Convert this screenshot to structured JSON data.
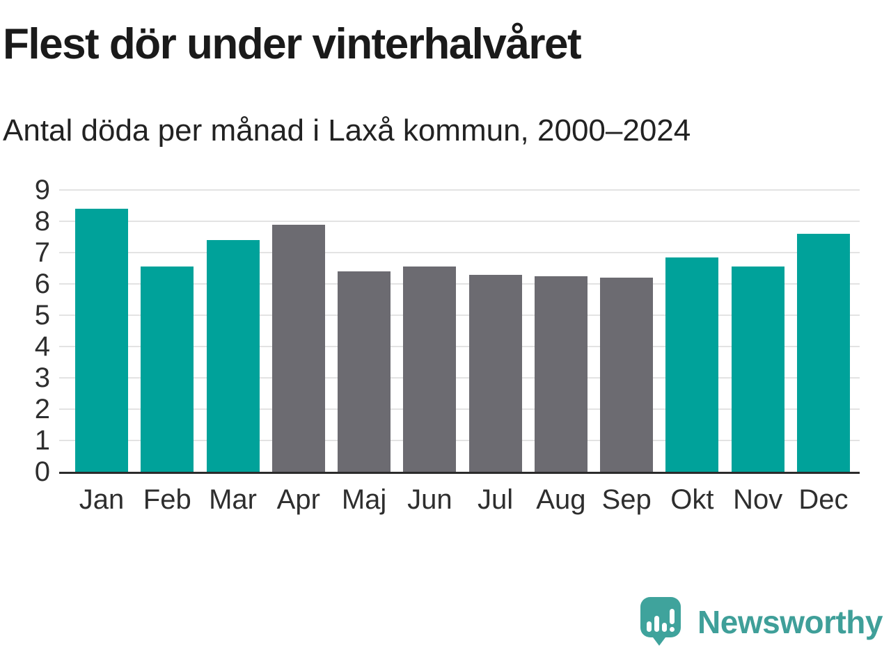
{
  "header": {
    "title": "Flest dör under vinterhalvåret",
    "subtitle": "Antal döda per månad i Laxå kommun, 2000–2024"
  },
  "chart_data": {
    "type": "bar",
    "title": "Flest dör under vinterhalvåret",
    "subtitle": "Antal döda per månad i Laxå kommun, 2000–2024",
    "categories": [
      "Jan",
      "Feb",
      "Mar",
      "Apr",
      "Maj",
      "Jun",
      "Jul",
      "Aug",
      "Sep",
      "Okt",
      "Nov",
      "Dec"
    ],
    "values": [
      8.4,
      6.55,
      7.4,
      7.9,
      6.4,
      6.55,
      6.3,
      6.25,
      6.2,
      6.85,
      6.55,
      7.6
    ],
    "bar_colors": [
      "#00a29a",
      "#00a29a",
      "#00a29a",
      "#6c6b71",
      "#6c6b71",
      "#6c6b71",
      "#6c6b71",
      "#6c6b71",
      "#6c6b71",
      "#00a29a",
      "#00a29a",
      "#00a29a"
    ],
    "winter_color": "#00a29a",
    "summer_color": "#6c6b71",
    "xlabel": "",
    "ylabel": "",
    "ylim": [
      0,
      9
    ],
    "yticks": [
      0,
      1,
      2,
      3,
      4,
      5,
      6,
      7,
      8,
      9
    ],
    "grid": true,
    "gridline_color": "#e3e3e3",
    "axis_line_color": "#2b2b2b",
    "legend": false
  },
  "footer": {
    "brand": "Newsworthy",
    "brand_color": "#3f9f99",
    "logo_icon": "bar-chart-speech-bubble-icon",
    "logo_color": "#3fa39c"
  }
}
